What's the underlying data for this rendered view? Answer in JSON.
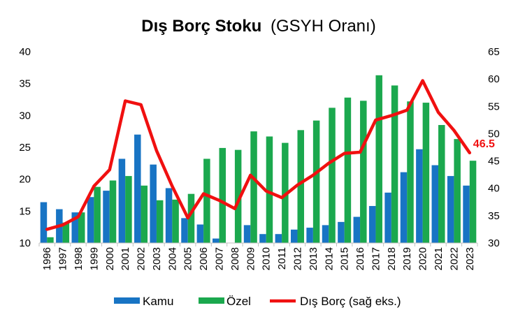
{
  "chart_data": {
    "type": "bar",
    "title_main": "Dış Borç Stoku",
    "title_sub": "(GSYH Oranı)",
    "categories": [
      "1996",
      "1997",
      "1998",
      "1999",
      "2000",
      "2001",
      "2002",
      "2003",
      "2004",
      "2005",
      "2006",
      "2007",
      "2008",
      "2009",
      "2010",
      "2011",
      "2012",
      "2013",
      "2014",
      "2015",
      "2016",
      "2017",
      "2018",
      "2019",
      "2020",
      "2021",
      "2022",
      "2023"
    ],
    "series": [
      {
        "name": "Kamu",
        "type": "bar",
        "axis": "left",
        "color": "#1874C4",
        "values": [
          16.4,
          15.3,
          14.8,
          17.2,
          18.2,
          23.2,
          27.0,
          22.3,
          18.6,
          13.9,
          12.9,
          10.7,
          10.0,
          12.8,
          11.4,
          11.4,
          12.1,
          12.4,
          12.8,
          13.3,
          14.1,
          15.8,
          17.9,
          21.1,
          24.7,
          22.2,
          20.5,
          19.0
        ]
      },
      {
        "name": "Özel",
        "type": "bar",
        "axis": "left",
        "color": "#1BA84E",
        "values": [
          10.9,
          13.2,
          14.8,
          18.8,
          19.8,
          20.5,
          19.0,
          16.7,
          16.8,
          17.7,
          23.2,
          24.9,
          24.6,
          27.5,
          26.7,
          25.7,
          27.7,
          29.2,
          31.2,
          32.8,
          32.3,
          36.3,
          34.7,
          32.2,
          32.0,
          28.5,
          26.3,
          22.9
        ]
      },
      {
        "name": "Dış Borç (sağ eks.)",
        "type": "line",
        "axis": "right",
        "color": "#F01010",
        "values": [
          32.5,
          33.3,
          34.8,
          40.4,
          43.4,
          56.0,
          55.3,
          46.9,
          40.4,
          34.6,
          39.0,
          37.8,
          36.3,
          42.4,
          39.5,
          38.3,
          40.6,
          42.4,
          44.6,
          46.4,
          46.6,
          52.5,
          53.3,
          54.3,
          59.7,
          53.9,
          50.6,
          46.5
        ]
      }
    ],
    "ylim_left": [
      10,
      40
    ],
    "ylim_right": [
      30,
      65
    ],
    "yticks_left": [
      "10",
      "15",
      "20",
      "25",
      "30",
      "35",
      "40"
    ],
    "yticks_right": [
      "30",
      "35",
      "40",
      "45",
      "50",
      "55",
      "60",
      "65"
    ],
    "annotation": {
      "text": "46.5",
      "color": "#F01010"
    },
    "legend_position": "bottom",
    "grid": false
  }
}
